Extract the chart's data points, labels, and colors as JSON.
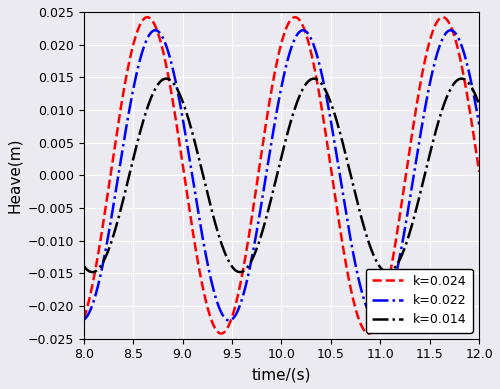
{
  "title": "",
  "xlabel": "time/(s)",
  "ylabel": "Heave(m)",
  "xlim": [
    8,
    12
  ],
  "ylim": [
    -0.025,
    0.025
  ],
  "yticks": [
    -0.025,
    -0.02,
    -0.015,
    -0.01,
    -0.005,
    0,
    0.005,
    0.01,
    0.015,
    0.02,
    0.025
  ],
  "xticks": [
    8,
    8.5,
    9,
    9.5,
    10,
    10.5,
    11,
    11.5,
    12
  ],
  "series": [
    {
      "label": "k=0.024",
      "amplitude": 0.0242,
      "period": 1.494,
      "phase_shift": 8.27,
      "color": "red",
      "linestyle": "--",
      "linewidth": 1.8
    },
    {
      "label": "k=0.022",
      "amplitude": 0.0222,
      "period": 1.494,
      "phase_shift": 8.35,
      "color": "blue",
      "linestyle": "-.",
      "linewidth": 1.8
    },
    {
      "label": "k=0.014",
      "amplitude": 0.0148,
      "period": 1.494,
      "phase_shift": 8.46,
      "color": "black",
      "linestyle": "-.",
      "linewidth": 1.8
    }
  ],
  "legend_loc": "lower right",
  "grid": true,
  "background_color": "#eaeaf0",
  "grid_color": "white",
  "grid_linewidth": 0.8,
  "tick_fontsize": 9,
  "label_fontsize": 11
}
